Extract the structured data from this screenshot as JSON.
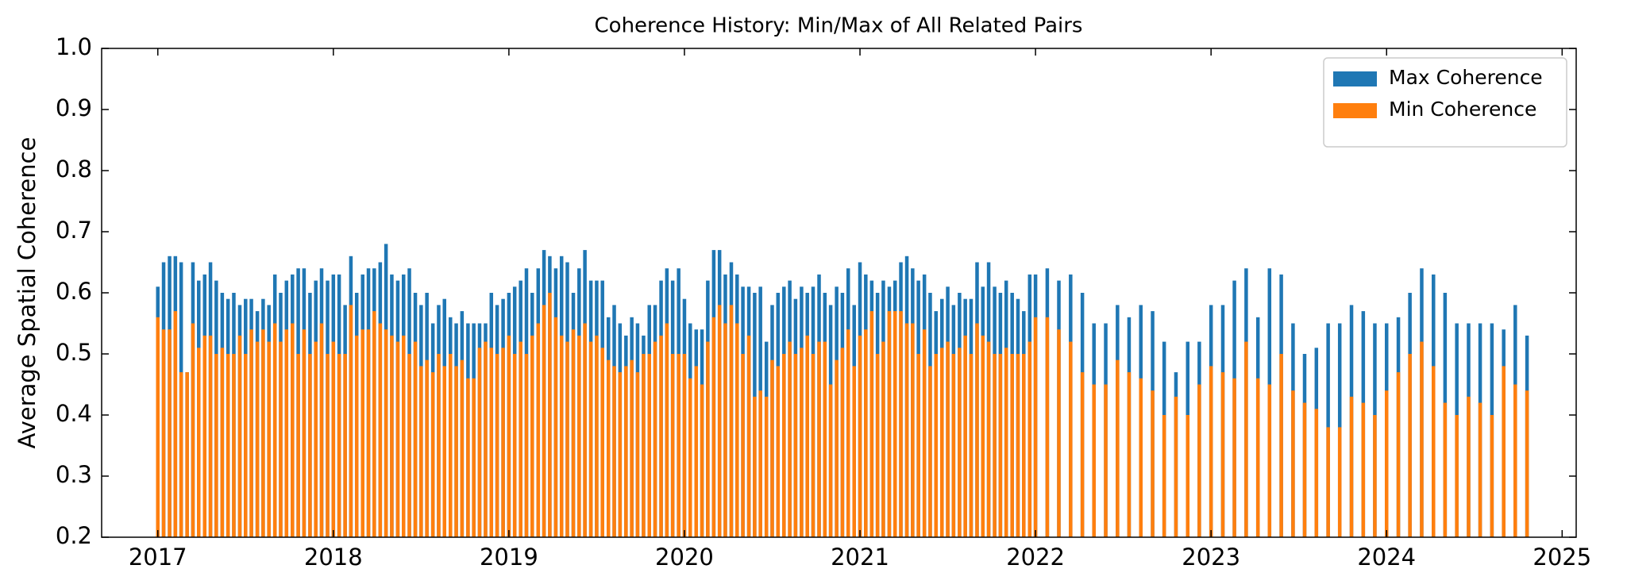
{
  "chart_data": {
    "type": "bar",
    "title": "Coherence History: Min/Max of All Related Pairs",
    "ylabel": "Average Spatial Coherence",
    "x": [
      2017.0,
      2017.033,
      2017.067,
      2017.1,
      2017.133,
      2017.167,
      2017.2,
      2017.233,
      2017.267,
      2017.3,
      2017.333,
      2017.367,
      2017.4,
      2017.433,
      2017.467,
      2017.5,
      2017.533,
      2017.567,
      2017.6,
      2017.633,
      2017.667,
      2017.7,
      2017.733,
      2017.767,
      2017.8,
      2017.833,
      2017.867,
      2017.9,
      2017.933,
      2017.967,
      2018.0,
      2018.033,
      2018.067,
      2018.1,
      2018.133,
      2018.167,
      2018.2,
      2018.233,
      2018.267,
      2018.3,
      2018.333,
      2018.367,
      2018.4,
      2018.433,
      2018.467,
      2018.5,
      2018.533,
      2018.567,
      2018.6,
      2018.633,
      2018.667,
      2018.7,
      2018.733,
      2018.767,
      2018.8,
      2018.833,
      2018.867,
      2018.9,
      2018.933,
      2018.967,
      2019.0,
      2019.033,
      2019.067,
      2019.1,
      2019.133,
      2019.167,
      2019.2,
      2019.233,
      2019.267,
      2019.3,
      2019.333,
      2019.367,
      2019.4,
      2019.433,
      2019.467,
      2019.5,
      2019.533,
      2019.567,
      2019.6,
      2019.633,
      2019.667,
      2019.7,
      2019.733,
      2019.767,
      2019.8,
      2019.833,
      2019.867,
      2019.9,
      2019.933,
      2019.967,
      2020.0,
      2020.033,
      2020.067,
      2020.1,
      2020.133,
      2020.167,
      2020.2,
      2020.233,
      2020.267,
      2020.3,
      2020.333,
      2020.367,
      2020.4,
      2020.433,
      2020.467,
      2020.5,
      2020.533,
      2020.567,
      2020.6,
      2020.633,
      2020.667,
      2020.7,
      2020.733,
      2020.767,
      2020.8,
      2020.833,
      2020.867,
      2020.9,
      2020.933,
      2020.967,
      2021.0,
      2021.033,
      2021.067,
      2021.1,
      2021.133,
      2021.167,
      2021.2,
      2021.233,
      2021.267,
      2021.3,
      2021.333,
      2021.367,
      2021.4,
      2021.433,
      2021.467,
      2021.5,
      2021.533,
      2021.567,
      2021.6,
      2021.633,
      2021.667,
      2021.7,
      2021.733,
      2021.767,
      2021.8,
      2021.833,
      2021.867,
      2021.9,
      2021.933,
      2021.967,
      2022.0,
      2022.067,
      2022.133,
      2022.2,
      2022.267,
      2022.333,
      2022.4,
      2022.467,
      2022.533,
      2022.6,
      2022.667,
      2022.733,
      2022.8,
      2022.867,
      2022.933,
      2023.0,
      2023.067,
      2023.133,
      2023.2,
      2023.267,
      2023.333,
      2023.4,
      2023.467,
      2023.533,
      2023.6,
      2023.667,
      2023.733,
      2023.8,
      2023.867,
      2023.933,
      2024.0,
      2024.067,
      2024.133,
      2024.2,
      2024.267,
      2024.333,
      2024.4,
      2024.467,
      2024.533,
      2024.6,
      2024.667,
      2024.733,
      2024.8
    ],
    "series": [
      {
        "name": "Max Coherence",
        "color": "#1f77b4",
        "values": [
          0.61,
          0.65,
          0.66,
          0.66,
          0.65,
          0.47,
          0.65,
          0.62,
          0.63,
          0.65,
          0.62,
          0.6,
          0.59,
          0.6,
          0.58,
          0.59,
          0.59,
          0.57,
          0.59,
          0.58,
          0.63,
          0.6,
          0.62,
          0.63,
          0.64,
          0.64,
          0.6,
          0.62,
          0.64,
          0.62,
          0.63,
          0.63,
          0.58,
          0.66,
          0.6,
          0.63,
          0.64,
          0.64,
          0.65,
          0.68,
          0.63,
          0.62,
          0.63,
          0.64,
          0.6,
          0.58,
          0.6,
          0.55,
          0.58,
          0.59,
          0.56,
          0.55,
          0.57,
          0.55,
          0.55,
          0.55,
          0.55,
          0.6,
          0.58,
          0.59,
          0.6,
          0.61,
          0.62,
          0.64,
          0.6,
          0.64,
          0.67,
          0.66,
          0.64,
          0.66,
          0.65,
          0.6,
          0.64,
          0.67,
          0.62,
          0.62,
          0.62,
          0.56,
          0.58,
          0.55,
          0.53,
          0.56,
          0.55,
          0.53,
          0.58,
          0.58,
          0.62,
          0.64,
          0.62,
          0.64,
          0.59,
          0.55,
          0.54,
          0.54,
          0.62,
          0.67,
          0.67,
          0.63,
          0.65,
          0.63,
          0.61,
          0.61,
          0.6,
          0.61,
          0.52,
          0.58,
          0.6,
          0.61,
          0.62,
          0.59,
          0.61,
          0.6,
          0.61,
          0.63,
          0.6,
          0.58,
          0.61,
          0.6,
          0.64,
          0.58,
          0.65,
          0.63,
          0.62,
          0.6,
          0.62,
          0.61,
          0.62,
          0.65,
          0.66,
          0.64,
          0.62,
          0.63,
          0.6,
          0.57,
          0.59,
          0.61,
          0.58,
          0.6,
          0.59,
          0.59,
          0.65,
          0.61,
          0.65,
          0.61,
          0.6,
          0.62,
          0.6,
          0.59,
          0.57,
          0.63,
          0.63,
          0.64,
          0.62,
          0.63,
          0.6,
          0.55,
          0.55,
          0.58,
          0.56,
          0.58,
          0.57,
          0.52,
          0.47,
          0.52,
          0.52,
          0.58,
          0.58,
          0.62,
          0.64,
          0.56,
          0.64,
          0.63,
          0.55,
          0.5,
          0.51,
          0.55,
          0.55,
          0.58,
          0.57,
          0.55,
          0.55,
          0.56,
          0.6,
          0.64,
          0.63,
          0.6,
          0.55,
          0.55,
          0.55,
          0.55,
          0.54,
          0.58,
          0.53
        ]
      },
      {
        "name": "Min Coherence",
        "color": "#ff7f0e",
        "values": [
          0.56,
          0.54,
          0.54,
          0.57,
          0.47,
          0.47,
          0.55,
          0.51,
          0.53,
          0.53,
          0.5,
          0.51,
          0.5,
          0.5,
          0.53,
          0.5,
          0.54,
          0.52,
          0.54,
          0.52,
          0.55,
          0.52,
          0.54,
          0.55,
          0.5,
          0.54,
          0.5,
          0.52,
          0.55,
          0.5,
          0.52,
          0.5,
          0.5,
          0.58,
          0.53,
          0.54,
          0.54,
          0.57,
          0.55,
          0.54,
          0.53,
          0.52,
          0.53,
          0.5,
          0.52,
          0.48,
          0.49,
          0.47,
          0.5,
          0.48,
          0.5,
          0.48,
          0.49,
          0.46,
          0.46,
          0.51,
          0.52,
          0.51,
          0.5,
          0.51,
          0.53,
          0.5,
          0.52,
          0.5,
          0.53,
          0.55,
          0.58,
          0.6,
          0.56,
          0.53,
          0.52,
          0.54,
          0.53,
          0.55,
          0.52,
          0.53,
          0.51,
          0.49,
          0.48,
          0.47,
          0.48,
          0.49,
          0.47,
          0.5,
          0.5,
          0.52,
          0.53,
          0.55,
          0.5,
          0.5,
          0.5,
          0.46,
          0.48,
          0.45,
          0.52,
          0.56,
          0.58,
          0.55,
          0.58,
          0.55,
          0.5,
          0.53,
          0.43,
          0.44,
          0.43,
          0.49,
          0.48,
          0.5,
          0.52,
          0.5,
          0.51,
          0.53,
          0.5,
          0.52,
          0.52,
          0.45,
          0.49,
          0.51,
          0.54,
          0.48,
          0.53,
          0.54,
          0.57,
          0.5,
          0.52,
          0.57,
          0.57,
          0.57,
          0.55,
          0.55,
          0.5,
          0.54,
          0.48,
          0.5,
          0.51,
          0.52,
          0.5,
          0.51,
          0.53,
          0.5,
          0.55,
          0.53,
          0.52,
          0.5,
          0.5,
          0.51,
          0.5,
          0.5,
          0.5,
          0.52,
          0.56,
          0.56,
          0.54,
          0.52,
          0.47,
          0.45,
          0.45,
          0.49,
          0.47,
          0.46,
          0.44,
          0.4,
          0.43,
          0.4,
          0.45,
          0.48,
          0.47,
          0.46,
          0.52,
          0.46,
          0.45,
          0.5,
          0.44,
          0.42,
          0.41,
          0.38,
          0.38,
          0.43,
          0.42,
          0.4,
          0.44,
          0.47,
          0.5,
          0.52,
          0.48,
          0.42,
          0.4,
          0.43,
          0.42,
          0.4,
          0.48,
          0.45,
          0.44
        ]
      }
    ],
    "xlim": [
      2016.68,
      2025.08
    ],
    "xticks": [
      2017,
      2018,
      2019,
      2020,
      2021,
      2022,
      2023,
      2024,
      2025
    ],
    "ylim": [
      0.2,
      1.0
    ],
    "yticks": [
      {
        "value": 0.2,
        "label": "0.2"
      },
      {
        "value": 0.3,
        "label": "0.3"
      },
      {
        "value": 0.4,
        "label": "0.4"
      },
      {
        "value": 0.5,
        "label": "0.5"
      },
      {
        "value": 0.6,
        "label": "0.6"
      },
      {
        "value": 0.7,
        "label": "0.7"
      },
      {
        "value": 0.8,
        "label": "0.8"
      },
      {
        "value": 0.9,
        "label": "0.9"
      },
      {
        "value": 1.0,
        "label": "1.0"
      }
    ],
    "legend": "upper right",
    "grid": false
  }
}
